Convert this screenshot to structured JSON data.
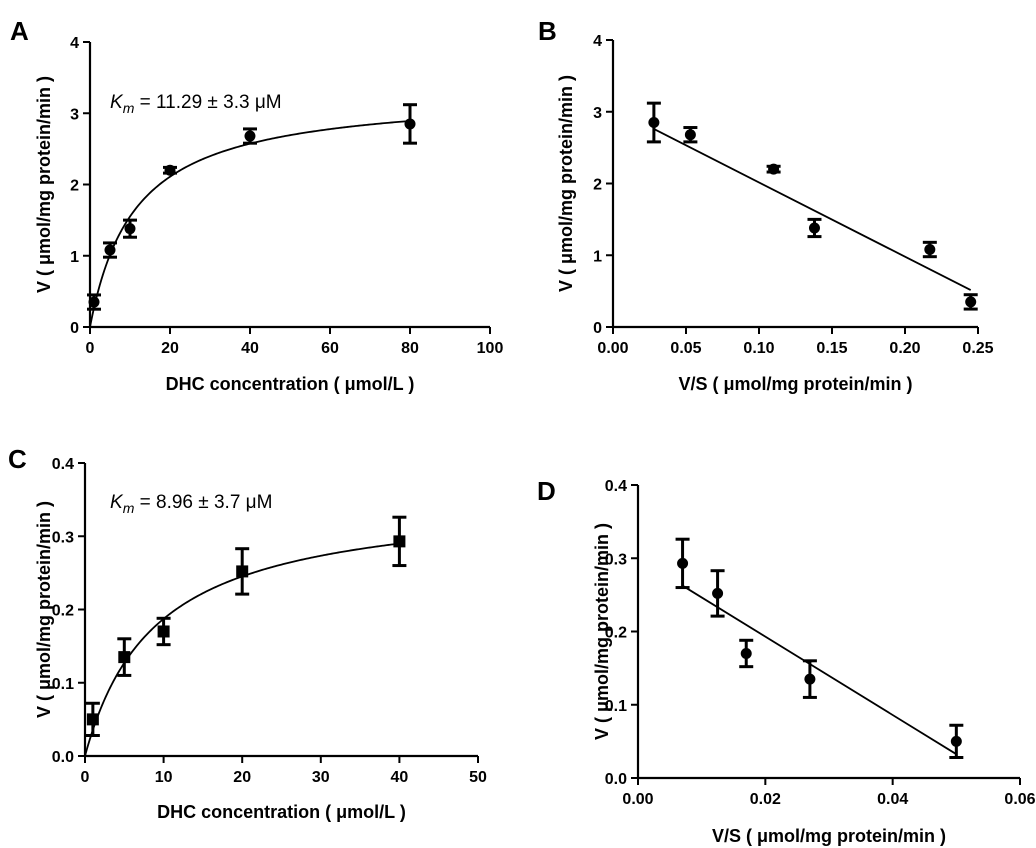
{
  "chart_data": [
    {
      "panel": "A",
      "type": "scatter",
      "marker": "circle",
      "xlabel": "DHC concentration ( μmol/L )",
      "ylabel": "V ( μmol/mg protein/min )",
      "xlim": [
        0,
        100
      ],
      "ylim": [
        0,
        4
      ],
      "xticks": [
        0,
        20,
        40,
        60,
        80,
        100
      ],
      "yticks": [
        0,
        1,
        2,
        3,
        4
      ],
      "annotation": {
        "k": "K",
        "sub": "m",
        "rest": " = 11.29 ± 3.3 μM"
      },
      "fit": {
        "model": "michaelis-menten",
        "vmax": 3.3,
        "km": 11.29
      },
      "points": [
        {
          "x": 1,
          "y": 0.35,
          "err": 0.1
        },
        {
          "x": 5,
          "y": 1.08,
          "err": 0.1
        },
        {
          "x": 10,
          "y": 1.38,
          "err": 0.12
        },
        {
          "x": 20,
          "y": 2.2,
          "err": 0.04
        },
        {
          "x": 40,
          "y": 2.68,
          "err": 0.1
        },
        {
          "x": 80,
          "y": 2.85,
          "err": 0.27
        }
      ]
    },
    {
      "panel": "B",
      "type": "scatter",
      "marker": "circle",
      "xlabel": "V/S ( μmol/mg protein/min )",
      "ylabel": "V ( μmol/mg protein/min )",
      "xlim": [
        0,
        0.25
      ],
      "ylim": [
        0,
        4
      ],
      "xticks": [
        "0.00",
        "0.05",
        "0.10",
        "0.15",
        "0.20",
        "0.25"
      ],
      "yticks": [
        0,
        1,
        2,
        3,
        4
      ],
      "fit": {
        "model": "linear",
        "x_range": [
          0.028,
          0.245
        ],
        "slope": -10.35,
        "intercept": 3.05
      },
      "points": [
        {
          "x": 0.028,
          "y": 2.85,
          "err": 0.27
        },
        {
          "x": 0.053,
          "y": 2.68,
          "err": 0.1
        },
        {
          "x": 0.11,
          "y": 2.2,
          "err": 0.04
        },
        {
          "x": 0.138,
          "y": 1.38,
          "err": 0.12
        },
        {
          "x": 0.217,
          "y": 1.08,
          "err": 0.1
        },
        {
          "x": 0.245,
          "y": 0.35,
          "err": 0.1
        }
      ]
    },
    {
      "panel": "C",
      "type": "scatter",
      "marker": "square",
      "xlabel": "DHC concentration ( μmol/L )",
      "ylabel": "V ( μmol/mg protein/min )",
      "xlim": [
        0,
        50
      ],
      "ylim": [
        0,
        0.4
      ],
      "xticks": [
        0,
        10,
        20,
        30,
        40,
        50
      ],
      "yticks": [
        "0.0",
        "0.1",
        "0.2",
        "0.3",
        "0.4"
      ],
      "annotation": {
        "k": "K",
        "sub": "m",
        "rest": " = 8.96 ± 3.7 μM"
      },
      "fit": {
        "model": "michaelis-menten",
        "vmax": 0.355,
        "km": 8.96
      },
      "points": [
        {
          "x": 1,
          "y": 0.05,
          "err": 0.022
        },
        {
          "x": 5,
          "y": 0.135,
          "err": 0.025
        },
        {
          "x": 10,
          "y": 0.17,
          "err": 0.018
        },
        {
          "x": 20,
          "y": 0.252,
          "err": 0.031
        },
        {
          "x": 40,
          "y": 0.293,
          "err": 0.033
        }
      ]
    },
    {
      "panel": "D",
      "type": "scatter",
      "marker": "circle",
      "xlabel": "V/S ( μmol/mg protein/min )",
      "ylabel": "V ( μmol/mg protein/min )",
      "xlim": [
        0,
        0.06
      ],
      "ylim": [
        0,
        0.4
      ],
      "xticks": [
        "0.00",
        "0.02",
        "0.04",
        "0.06"
      ],
      "yticks": [
        "0.0",
        "0.1",
        "0.2",
        "0.3",
        "0.4"
      ],
      "fit": {
        "model": "linear",
        "x_range": [
          0.007,
          0.05
        ],
        "slope": -5.35,
        "intercept": 0.3
      },
      "points": [
        {
          "x": 0.007,
          "y": 0.293,
          "err": 0.033
        },
        {
          "x": 0.0125,
          "y": 0.252,
          "err": 0.031
        },
        {
          "x": 0.017,
          "y": 0.17,
          "err": 0.018
        },
        {
          "x": 0.027,
          "y": 0.135,
          "err": 0.025
        },
        {
          "x": 0.05,
          "y": 0.05,
          "err": 0.022
        }
      ]
    }
  ]
}
